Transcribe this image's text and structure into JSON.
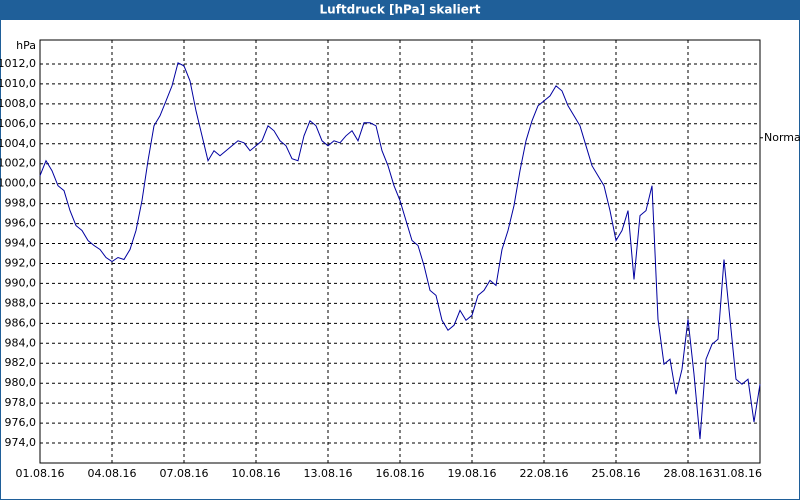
{
  "chart_data": {
    "type": "line",
    "title": "Luftdruck [hPa] skaliert",
    "y_label": "hPa",
    "annotations": [
      {
        "text": "Normal",
        "value": 1004.6
      }
    ],
    "xlim": [
      1,
      31
    ],
    "ylim": [
      972,
      1014.4
    ],
    "grid": true,
    "xticks": [
      {
        "value": 1,
        "label": "01.08.16"
      },
      {
        "value": 4,
        "label": "04.08.16"
      },
      {
        "value": 7,
        "label": "07.08.16"
      },
      {
        "value": 10,
        "label": "10.08.16"
      },
      {
        "value": 13,
        "label": "13.08.16"
      },
      {
        "value": 16,
        "label": "16.08.16"
      },
      {
        "value": 19,
        "label": "19.08.16"
      },
      {
        "value": 22,
        "label": "22.08.16"
      },
      {
        "value": 25,
        "label": "25.08.16"
      },
      {
        "value": 28,
        "label": "28.08.16"
      },
      {
        "value": 31,
        "label": "31.08.16"
      }
    ],
    "yticks": [
      {
        "value": 974,
        "label": "974,0"
      },
      {
        "value": 976,
        "label": "976,0"
      },
      {
        "value": 978,
        "label": "978,0"
      },
      {
        "value": 980,
        "label": "980,0"
      },
      {
        "value": 982,
        "label": "982,0"
      },
      {
        "value": 984,
        "label": "984,0"
      },
      {
        "value": 986,
        "label": "986,0"
      },
      {
        "value": 988,
        "label": "988,0"
      },
      {
        "value": 990,
        "label": "990,0"
      },
      {
        "value": 992,
        "label": "992,0"
      },
      {
        "value": 994,
        "label": "994,0"
      },
      {
        "value": 996,
        "label": "996,0"
      },
      {
        "value": 998,
        "label": "998,0"
      },
      {
        "value": 1000,
        "label": "1000,0"
      },
      {
        "value": 1002,
        "label": "1002,0"
      },
      {
        "value": 1004,
        "label": "1004,0"
      },
      {
        "value": 1006,
        "label": "1006,0"
      },
      {
        "value": 1008,
        "label": "1008,0"
      },
      {
        "value": 1010,
        "label": "1010,0"
      },
      {
        "value": 1012,
        "label": "1012,0"
      }
    ],
    "x": [
      1,
      1.25,
      1.5,
      1.75,
      2,
      2.25,
      2.5,
      2.75,
      3,
      3.25,
      3.5,
      3.75,
      4,
      4.25,
      4.5,
      4.75,
      5,
      5.25,
      5.5,
      5.75,
      6,
      6.25,
      6.5,
      6.75,
      7,
      7.25,
      7.5,
      7.75,
      8,
      8.25,
      8.5,
      8.75,
      9,
      9.25,
      9.5,
      9.75,
      10,
      10.25,
      10.5,
      10.75,
      11,
      11.25,
      11.5,
      11.75,
      12,
      12.25,
      12.5,
      12.75,
      13,
      13.25,
      13.5,
      13.75,
      14,
      14.25,
      14.5,
      14.75,
      15,
      15.25,
      15.5,
      15.75,
      16,
      16.25,
      16.5,
      16.75,
      17,
      17.25,
      17.5,
      17.75,
      18,
      18.25,
      18.5,
      18.75,
      19,
      19.25,
      19.5,
      19.75,
      20,
      20.25,
      20.5,
      20.75,
      21,
      21.25,
      21.5,
      21.75,
      22,
      22.25,
      22.5,
      22.75,
      23,
      23.25,
      23.5,
      23.75,
      24,
      24.25,
      24.5,
      24.75,
      25,
      25.25,
      25.5,
      25.75,
      26,
      26.25,
      26.5,
      26.75,
      27,
      27.25,
      27.5,
      27.75,
      28,
      28.25,
      28.5,
      28.75,
      29,
      29.25,
      29.5,
      29.75,
      30,
      30.25,
      30.5,
      30.75,
      31
    ],
    "series": [
      {
        "name": "Luftdruck",
        "color": "#0000a0",
        "values": [
          1000.8,
          1002.3,
          1001.3,
          999.8,
          999.3,
          997.3,
          995.8,
          995.3,
          994.3,
          993.8,
          993.4,
          992.6,
          992.2,
          992.6,
          992.4,
          993.4,
          995.3,
          998.3,
          1002.3,
          1005.8,
          1006.8,
          1008.3,
          1009.8,
          1012.1,
          1011.8,
          1010.3,
          1007.3,
          1004.8,
          1002.3,
          1003.3,
          1002.8,
          1003.3,
          1003.8,
          1004.3,
          1004.1,
          1003.3,
          1003.8,
          1004.3,
          1005.8,
          1005.3,
          1004.3,
          1003.8,
          1002.5,
          1002.3,
          1004.8,
          1006.3,
          1005.8,
          1004.3,
          1003.8,
          1004.3,
          1004.1,
          1004.8,
          1005.3,
          1004.3,
          1006.1,
          1006.1,
          1005.8,
          1003.3,
          1001.8,
          999.8,
          998.3,
          996.3,
          994.3,
          993.8,
          991.8,
          989.3,
          988.8,
          986.3,
          985.3,
          985.8,
          987.3,
          986.3,
          986.8,
          988.8,
          989.3,
          990.3,
          989.8,
          993.4,
          995.3,
          997.8,
          1001.3,
          1004.3,
          1006.3,
          1007.8,
          1008.3,
          1008.8,
          1009.8,
          1009.3,
          1007.8,
          1006.8,
          1005.8,
          1003.8,
          1001.8,
          1000.8,
          999.8,
          997.3,
          994.3,
          995.3,
          997.3,
          990.4,
          996.8,
          997.3,
          999.8,
          986.4,
          981.9,
          982.4,
          978.9,
          981.4,
          986.4,
          980.9,
          974.4,
          982.4,
          983.9,
          984.4,
          992.4,
          986.4,
          980.4,
          979.9,
          980.4,
          976.1,
          979.9
        ]
      }
    ]
  }
}
